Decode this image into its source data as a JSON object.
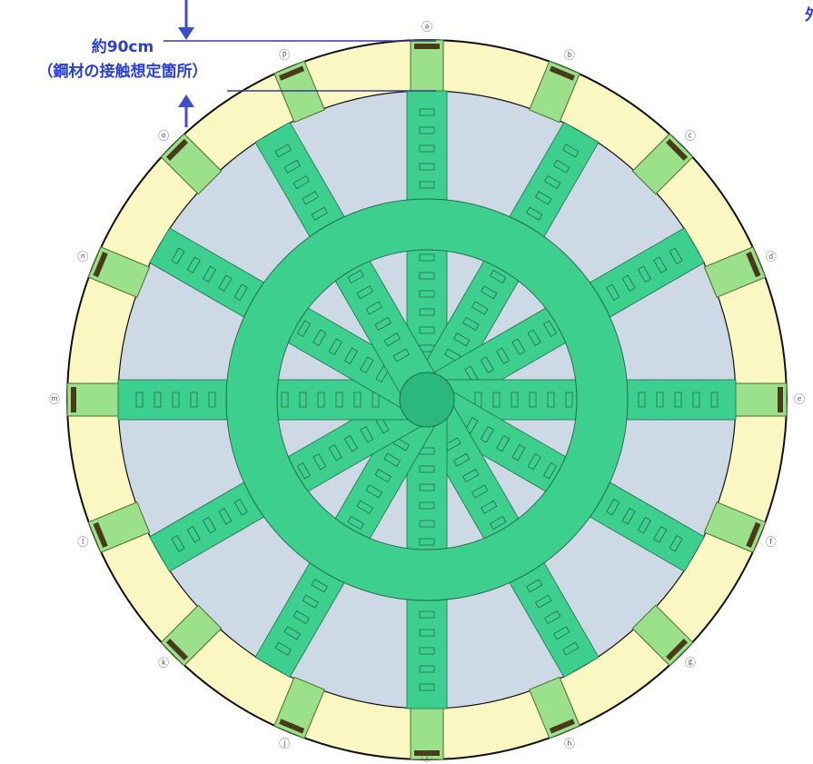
{
  "annotation": {
    "distance": "約90cm",
    "note": "（鋼材の接触想定箇所）"
  },
  "corner_text": "外",
  "position_labels": [
    "ⓐ",
    "ⓑ",
    "ⓒ",
    "ⓓ",
    "ⓔ",
    "ⓕ",
    "ⓖ",
    "ⓗ",
    "ⓘ",
    "ⓙ",
    "ⓚ",
    "ⓛ",
    "ⓜ",
    "ⓝ",
    "ⓞ",
    "ⓟ"
  ]
}
